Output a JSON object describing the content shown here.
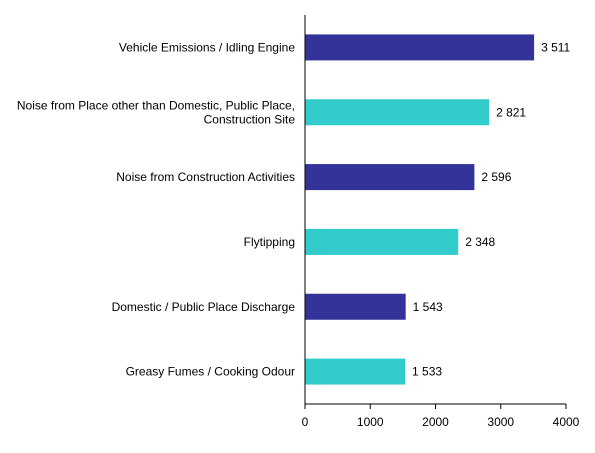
{
  "chart_data": {
    "type": "bar",
    "orientation": "horizontal",
    "categories": [
      [
        "Vehicle Emissions / Idling Engine"
      ],
      [
        "Noise from Place other than Domestic, Public Place,",
        "Construction Site"
      ],
      [
        "Noise from Construction Activities"
      ],
      [
        "Flytipping"
      ],
      [
        "Domestic / Public Place Discharge"
      ],
      [
        "Greasy Fumes / Cooking Odour"
      ]
    ],
    "values": [
      3511,
      2821,
      2596,
      2348,
      1543,
      1533
    ],
    "data_labels": [
      "3 511",
      "2 821",
      "2 596",
      "2 348",
      "1 543",
      "1 533"
    ],
    "bar_colors": [
      "#333399",
      "#33cccc",
      "#333399",
      "#33cccc",
      "#333399",
      "#33cccc"
    ],
    "xlim": [
      0,
      4000
    ],
    "x_ticks": [
      0,
      1000,
      2000,
      3000,
      4000
    ],
    "x_tick_labels": [
      "0",
      "1000",
      "2000",
      "3000",
      "4000"
    ],
    "grid": false,
    "legend": "none"
  }
}
